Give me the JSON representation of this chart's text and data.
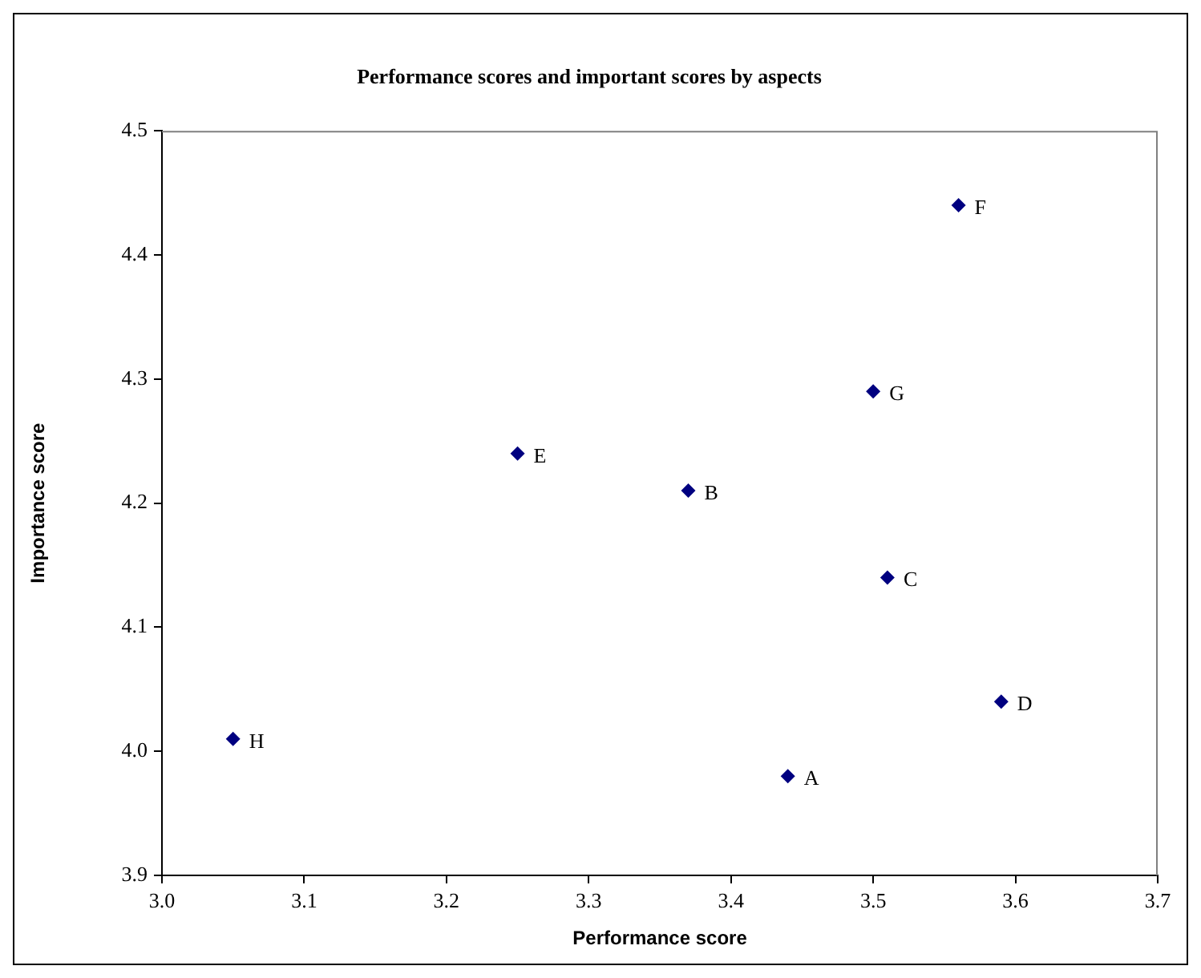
{
  "chart_data": {
    "type": "scatter",
    "title": "Performance scores and important scores by aspects",
    "xlabel": "Performance score",
    "ylabel": "Importance score",
    "x": [
      3.44,
      3.37,
      3.51,
      3.59,
      3.25,
      3.56,
      3.5,
      3.05
    ],
    "series": [
      {
        "color": "#000080",
        "values": [
          3.98,
          4.21,
          4.14,
          4.04,
          4.24,
          4.44,
          4.29,
          4.01
        ]
      }
    ],
    "annotations": [
      {
        "text": "A",
        "x": 3.44,
        "y": 3.98
      },
      {
        "text": "B",
        "x": 3.37,
        "y": 4.21
      },
      {
        "text": "C",
        "x": 3.51,
        "y": 4.14
      },
      {
        "text": "D",
        "x": 3.59,
        "y": 4.04
      },
      {
        "text": "E",
        "x": 3.25,
        "y": 4.24
      },
      {
        "text": "F",
        "x": 3.56,
        "y": 4.44
      },
      {
        "text": "G",
        "x": 3.5,
        "y": 4.29
      },
      {
        "text": "H",
        "x": 3.05,
        "y": 4.01
      }
    ],
    "xlim": [
      3.0,
      3.7
    ],
    "xticks": [
      {
        "value": 3.0,
        "label": "3.0"
      },
      3.1,
      3.2,
      3.3,
      3.4,
      3.5,
      3.6,
      3.7
    ],
    "ylim": [
      3.9,
      4.5
    ],
    "yticks": [
      3.9,
      {
        "value": 4.0,
        "label": "4.0"
      },
      4.1,
      4.2,
      4.3,
      4.4,
      4.5
    ],
    "grid": false,
    "legend": false,
    "marker": "diamond"
  }
}
